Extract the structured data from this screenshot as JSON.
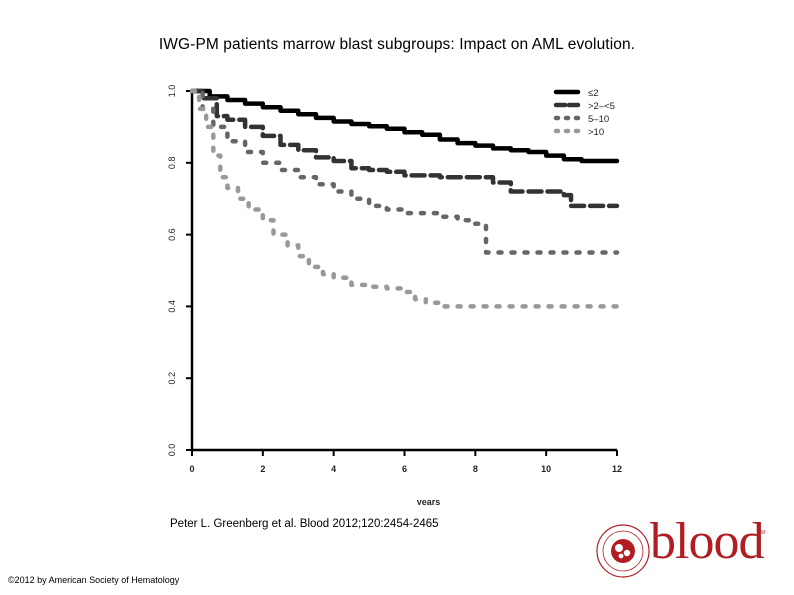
{
  "slide": {
    "title": "IWG-PM patients marrow blast subgroups: Impact on AML evolution.",
    "citation": "Peter L. Greenberg et al. Blood 2012;120:2454-2465",
    "copyright": "©2012 by American Society of Hematology",
    "logo_text": "blood",
    "logo_tm": "TM",
    "brand_color": "#b01e23"
  },
  "chart_data": {
    "type": "line",
    "title": "",
    "xlabel": "years",
    "ylabel": "",
    "xlim": [
      0,
      12
    ],
    "ylim": [
      0,
      1
    ],
    "x_ticks": [
      "0",
      "2",
      "4",
      "6",
      "8",
      "10",
      "12"
    ],
    "y_ticks": [
      "0.0",
      "0.2",
      "0.4",
      "0.6",
      "0.8",
      "1.0"
    ],
    "grid": false,
    "legend": "top-right",
    "series": [
      {
        "name": "≤2",
        "color": "#000000",
        "style": "solid",
        "points": [
          [
            0,
            1.0
          ],
          [
            0.5,
            0.985
          ],
          [
            1,
            0.975
          ],
          [
            1.5,
            0.965
          ],
          [
            2,
            0.955
          ],
          [
            2.5,
            0.945
          ],
          [
            3,
            0.935
          ],
          [
            3.5,
            0.925
          ],
          [
            4,
            0.915
          ],
          [
            4.5,
            0.908
          ],
          [
            5,
            0.902
          ],
          [
            5.5,
            0.895
          ],
          [
            6,
            0.885
          ],
          [
            6.5,
            0.878
          ],
          [
            7,
            0.865
          ],
          [
            7.5,
            0.855
          ],
          [
            8,
            0.848
          ],
          [
            8.5,
            0.84
          ],
          [
            9,
            0.835
          ],
          [
            9.5,
            0.83
          ],
          [
            10,
            0.82
          ],
          [
            10.5,
            0.81
          ],
          [
            11,
            0.805
          ],
          [
            12,
            0.805
          ]
        ]
      },
      {
        "name": ">2–<5",
        "color": "#333333",
        "style": "dashed",
        "points": [
          [
            0,
            1.0
          ],
          [
            0.3,
            0.98
          ],
          [
            0.7,
            0.93
          ],
          [
            1,
            0.92
          ],
          [
            1.5,
            0.9
          ],
          [
            2,
            0.875
          ],
          [
            2.5,
            0.85
          ],
          [
            3,
            0.835
          ],
          [
            3.5,
            0.815
          ],
          [
            4,
            0.805
          ],
          [
            4.5,
            0.785
          ],
          [
            5,
            0.78
          ],
          [
            5.5,
            0.775
          ],
          [
            6,
            0.765
          ],
          [
            7,
            0.76
          ],
          [
            8,
            0.76
          ],
          [
            8.5,
            0.745
          ],
          [
            9,
            0.72
          ],
          [
            10,
            0.72
          ],
          [
            10.5,
            0.71
          ],
          [
            10.7,
            0.68
          ],
          [
            12,
            0.68
          ]
        ]
      },
      {
        "name": "5–10",
        "color": "#666666",
        "style": "dotted",
        "points": [
          [
            0,
            1.0
          ],
          [
            0.3,
            0.95
          ],
          [
            0.6,
            0.9
          ],
          [
            1,
            0.86
          ],
          [
            1.5,
            0.83
          ],
          [
            2,
            0.8
          ],
          [
            2.5,
            0.78
          ],
          [
            3,
            0.76
          ],
          [
            3.5,
            0.74
          ],
          [
            4,
            0.72
          ],
          [
            4.5,
            0.7
          ],
          [
            5,
            0.68
          ],
          [
            5.5,
            0.67
          ],
          [
            6,
            0.66
          ],
          [
            6.5,
            0.66
          ],
          [
            7,
            0.65
          ],
          [
            7.5,
            0.64
          ],
          [
            8,
            0.63
          ],
          [
            8.3,
            0.55
          ],
          [
            12,
            0.55
          ]
        ]
      },
      {
        "name": ">10",
        "color": "#999999",
        "style": "dotted",
        "points": [
          [
            0,
            1.0
          ],
          [
            0.2,
            0.95
          ],
          [
            0.4,
            0.9
          ],
          [
            0.6,
            0.82
          ],
          [
            0.8,
            0.76
          ],
          [
            1,
            0.73
          ],
          [
            1.3,
            0.7
          ],
          [
            1.6,
            0.67
          ],
          [
            2,
            0.64
          ],
          [
            2.3,
            0.6
          ],
          [
            2.7,
            0.57
          ],
          [
            3,
            0.54
          ],
          [
            3.3,
            0.51
          ],
          [
            3.7,
            0.49
          ],
          [
            4,
            0.48
          ],
          [
            4.5,
            0.46
          ],
          [
            5,
            0.455
          ],
          [
            5.5,
            0.45
          ],
          [
            6,
            0.44
          ],
          [
            6.3,
            0.42
          ],
          [
            6.6,
            0.41
          ],
          [
            7,
            0.4
          ],
          [
            12,
            0.4
          ]
        ]
      }
    ]
  }
}
